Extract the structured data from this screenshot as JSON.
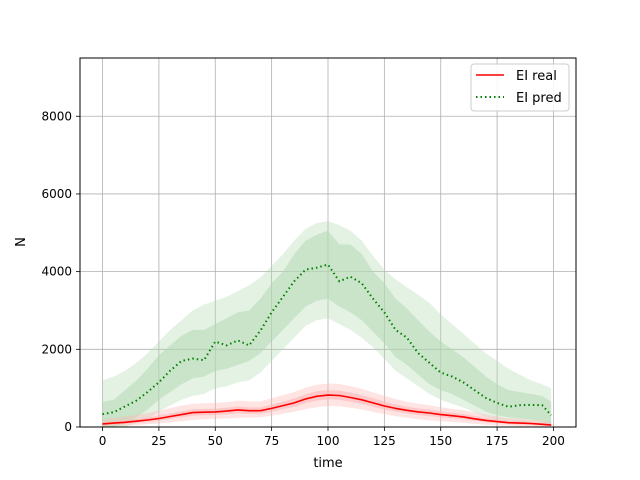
{
  "chart_data": {
    "type": "line",
    "title": "",
    "xlabel": "time",
    "ylabel": "N",
    "xlim": [
      -10,
      210
    ],
    "ylim": [
      0,
      9500
    ],
    "xticks": [
      0,
      25,
      50,
      75,
      100,
      125,
      150,
      175,
      200
    ],
    "yticks": [
      0,
      2000,
      4000,
      6000,
      8000
    ],
    "grid": true,
    "legend_position": "top-right",
    "colors": {
      "real": "#ff0000",
      "real_band": "#ffb3b3",
      "pred": "#008000",
      "pred_band": "#b3d9b3"
    },
    "x": [
      0,
      5,
      10,
      15,
      20,
      25,
      30,
      35,
      40,
      45,
      50,
      55,
      60,
      65,
      70,
      75,
      80,
      85,
      90,
      95,
      100,
      105,
      110,
      115,
      120,
      125,
      130,
      135,
      140,
      145,
      150,
      155,
      160,
      165,
      170,
      175,
      180,
      185,
      190,
      195,
      199
    ],
    "series": [
      {
        "name": "EI real",
        "style": "solid",
        "values": [
          80,
          100,
          120,
          150,
          180,
          220,
          270,
          320,
          370,
          380,
          390,
          410,
          440,
          420,
          420,
          480,
          550,
          620,
          720,
          790,
          820,
          810,
          760,
          700,
          620,
          540,
          480,
          430,
          390,
          360,
          320,
          290,
          260,
          210,
          170,
          140,
          110,
          100,
          90,
          70,
          50
        ],
        "band_outer_low": [
          10,
          20,
          30,
          50,
          70,
          90,
          120,
          150,
          180,
          200,
          210,
          220,
          240,
          240,
          250,
          290,
          340,
          390,
          460,
          510,
          540,
          530,
          500,
          450,
          390,
          330,
          280,
          240,
          200,
          170,
          150,
          130,
          110,
          80,
          60,
          40,
          30,
          20,
          15,
          10,
          5
        ],
        "band_outer_high": [
          200,
          230,
          270,
          310,
          360,
          420,
          490,
          550,
          600,
          610,
          620,
          640,
          680,
          660,
          660,
          740,
          820,
          900,
          1010,
          1090,
          1120,
          1110,
          1050,
          980,
          890,
          800,
          720,
          650,
          600,
          560,
          510,
          470,
          430,
          380,
          320,
          270,
          230,
          210,
          190,
          160,
          130
        ],
        "band_inner_low": [
          50,
          65,
          80,
          105,
          130,
          165,
          205,
          250,
          290,
          300,
          310,
          330,
          355,
          340,
          345,
          395,
          460,
          520,
          610,
          680,
          710,
          700,
          650,
          595,
          520,
          450,
          395,
          350,
          310,
          280,
          250,
          225,
          200,
          160,
          125,
          100,
          75,
          65,
          55,
          40,
          28
        ],
        "band_inner_high": [
          120,
          145,
          170,
          205,
          245,
          295,
          350,
          405,
          455,
          465,
          475,
          495,
          530,
          505,
          505,
          575,
          655,
          735,
          845,
          920,
          950,
          940,
          885,
          820,
          740,
          650,
          585,
          525,
          480,
          450,
          405,
          370,
          335,
          285,
          235,
          195,
          160,
          145,
          130,
          110,
          85
        ]
      },
      {
        "name": "EI pred",
        "style": "dotted",
        "values": [
          330,
          380,
          530,
          680,
          900,
          1150,
          1450,
          1700,
          1760,
          1720,
          2200,
          2100,
          2230,
          2100,
          2480,
          2950,
          3350,
          3750,
          4050,
          4100,
          4180,
          3750,
          3870,
          3700,
          3300,
          2950,
          2500,
          2300,
          1900,
          1650,
          1400,
          1300,
          1150,
          950,
          750,
          620,
          520,
          560,
          570,
          560,
          300
        ],
        "band_outer_low": [
          0,
          0,
          0,
          100,
          200,
          400,
          550,
          700,
          800,
          850,
          1000,
          1050,
          1150,
          1200,
          1400,
          1700,
          2000,
          2300,
          2600,
          2750,
          2800,
          2650,
          2500,
          2300,
          2050,
          1750,
          1450,
          1250,
          1050,
          850,
          700,
          600,
          500,
          380,
          250,
          180,
          150,
          120,
          100,
          80,
          30
        ],
        "band_outer_high": [
          1200,
          1300,
          1450,
          1650,
          1900,
          2200,
          2500,
          2750,
          3000,
          3150,
          3250,
          3350,
          3500,
          3650,
          3850,
          4150,
          4450,
          4800,
          5100,
          5250,
          5300,
          5200,
          5050,
          4800,
          4400,
          4050,
          3800,
          3600,
          3400,
          3200,
          2900,
          2650,
          2400,
          2150,
          1900,
          1700,
          1500,
          1350,
          1200,
          1100,
          1000
        ],
        "band_inner_low": [
          0,
          0,
          100,
          250,
          450,
          700,
          900,
          1100,
          1250,
          1300,
          1450,
          1500,
          1600,
          1700,
          1900,
          2200,
          2500,
          2800,
          3100,
          3250,
          3300,
          3100,
          2950,
          2750,
          2450,
          2150,
          1800,
          1600,
          1350,
          1100,
          950,
          850,
          700,
          550,
          400,
          300,
          250,
          220,
          200,
          150,
          50
        ],
        "band_inner_high": [
          650,
          700,
          950,
          1200,
          1500,
          1850,
          2100,
          2350,
          2500,
          2500,
          2650,
          2800,
          2950,
          3000,
          3300,
          3700,
          4000,
          4450,
          4800,
          4950,
          5050,
          4700,
          4700,
          4450,
          4000,
          3700,
          3300,
          3050,
          2750,
          2450,
          2200,
          2000,
          1800,
          1550,
          1300,
          1100,
          950,
          900,
          850,
          800,
          650
        ]
      }
    ]
  }
}
